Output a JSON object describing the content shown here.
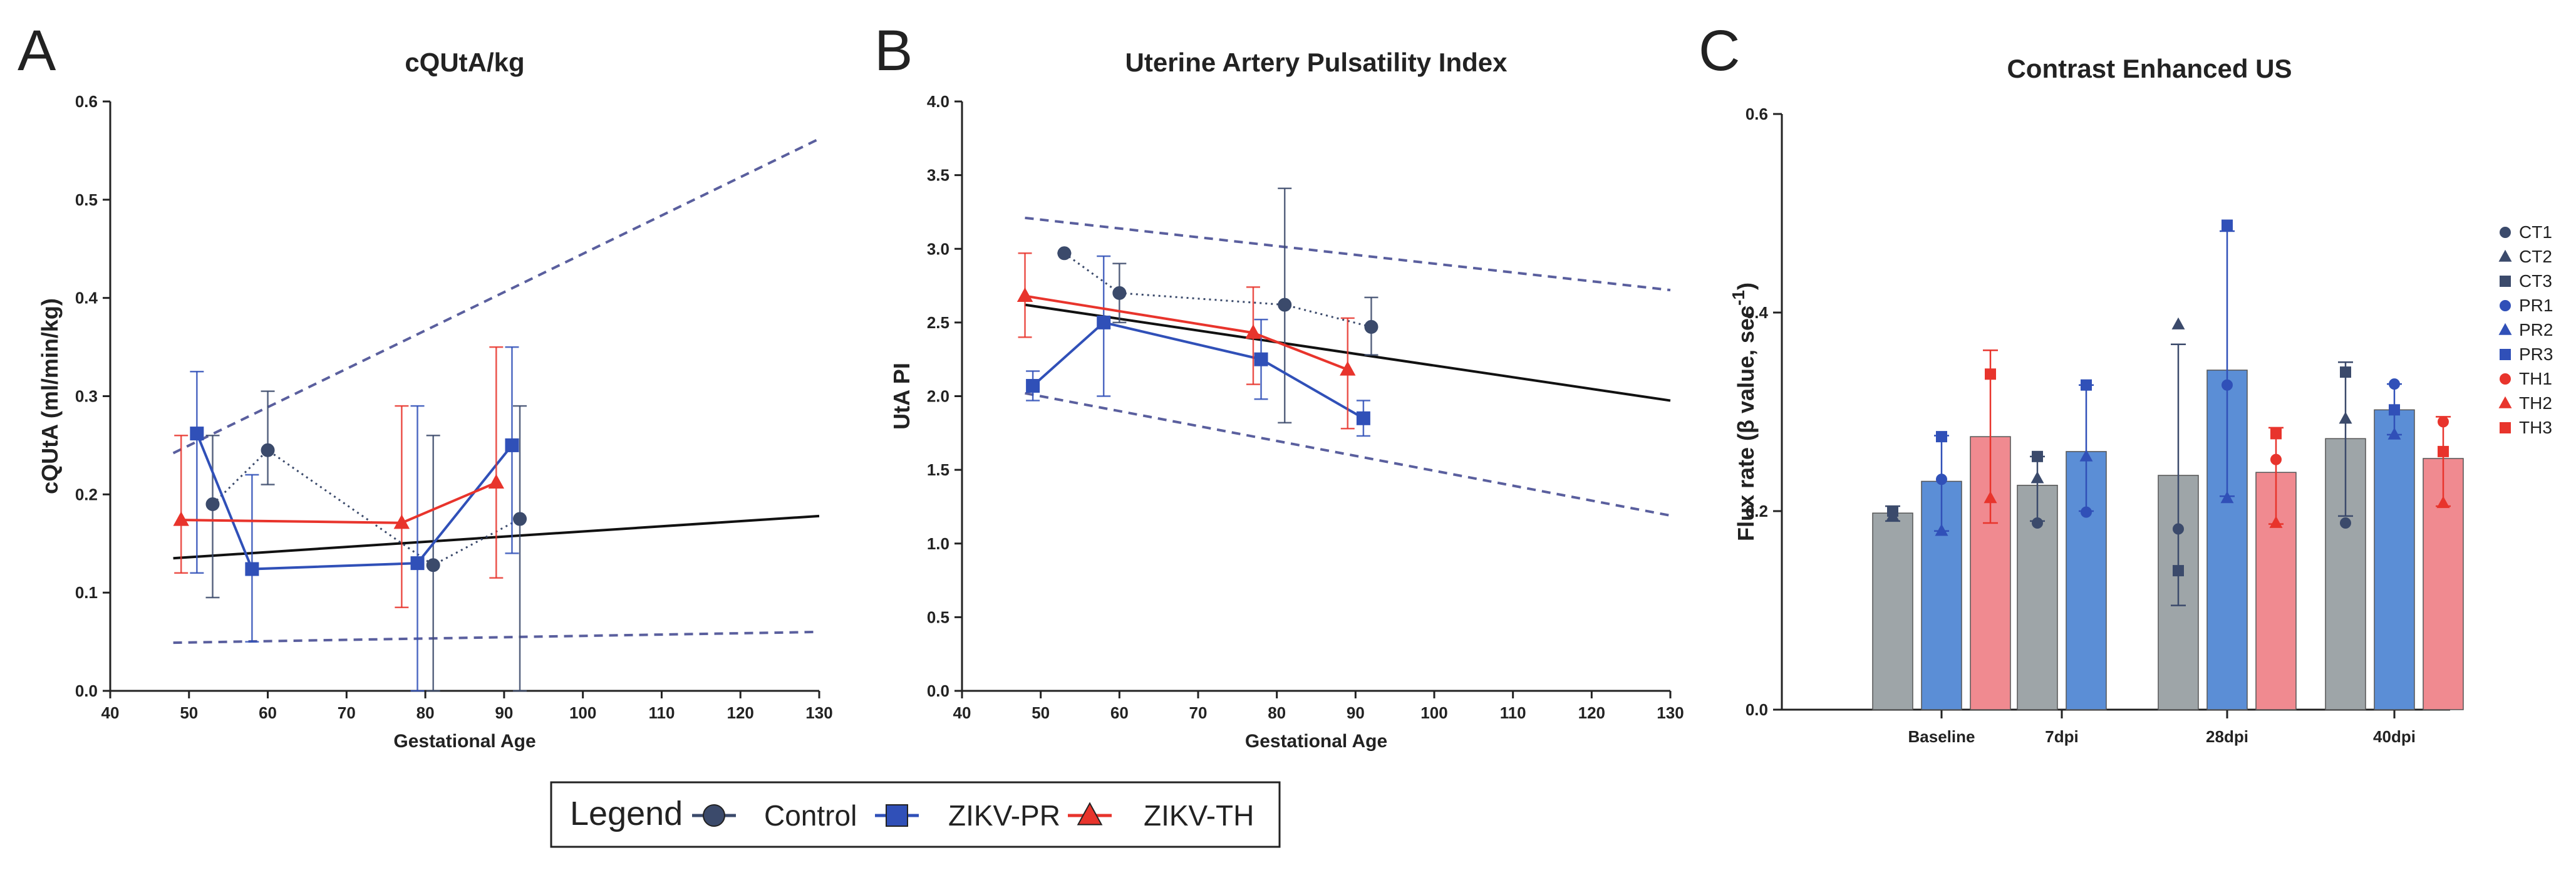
{
  "colors": {
    "control": "#3b4a6b",
    "zikv_pr": "#3050b8",
    "zikv_th": "#e8342c",
    "bar_ct": "#9ea5a8",
    "bar_pr": "#5b8ed6",
    "bar_th": "#f08a90",
    "dashed": "#5a5f9e",
    "fit": "#111111"
  },
  "panels": {
    "A": "A",
    "B": "B",
    "C": "C"
  },
  "legend": {
    "title": "Legend",
    "items": [
      "Control",
      "ZIKV-PR",
      "ZIKV-TH"
    ]
  },
  "chart_data": [
    {
      "id": "A",
      "type": "line",
      "title": "cQUtA/kg",
      "xlabel": "Gestational Age",
      "ylabel": "cQUtA  (ml/min/kg)",
      "xlim": [
        40,
        130
      ],
      "ylim": [
        0,
        0.6
      ],
      "xticks": [
        "40",
        "50",
        "60",
        "70",
        "80",
        "90",
        "100",
        "110",
        "120",
        "130"
      ],
      "yticks": [
        "0.0",
        "0.1",
        "0.2",
        "0.3",
        "0.4",
        "0.5",
        "0.6"
      ],
      "series": [
        {
          "name": "Control",
          "marker": "circle",
          "dotted": true,
          "x": [
            53,
            60,
            81,
            92
          ],
          "y": [
            0.19,
            0.245,
            0.128,
            0.175
          ],
          "err": [
            [
              0.095,
              0.26
            ],
            [
              0.21,
              0.305
            ],
            [
              0.0,
              0.26
            ],
            [
              0.0,
              0.29
            ]
          ]
        },
        {
          "name": "ZIKV-PR",
          "marker": "square",
          "dotted": false,
          "x": [
            51,
            58,
            79,
            91
          ],
          "y": [
            0.262,
            0.124,
            0.13,
            0.25
          ],
          "err": [
            [
              0.12,
              0.325
            ],
            [
              0.05,
              0.22
            ],
            [
              0.0,
              0.29
            ],
            [
              0.14,
              0.35
            ]
          ]
        },
        {
          "name": "ZIKV-TH",
          "marker": "triangle",
          "dotted": false,
          "x": [
            49,
            77,
            89
          ],
          "y": [
            0.174,
            0.171,
            0.212
          ],
          "err": [
            [
              0.12,
              0.26
            ],
            [
              0.085,
              0.29
            ],
            [
              0.115,
              0.35
            ]
          ]
        }
      ],
      "fit": {
        "x": [
          48,
          130
        ],
        "y": [
          0.135,
          0.178
        ]
      },
      "bounds": [
        {
          "x": [
            48,
            130
          ],
          "y": [
            0.242,
            0.562
          ]
        },
        {
          "x": [
            48,
            130
          ],
          "y": [
            0.049,
            0.06
          ]
        }
      ]
    },
    {
      "id": "B",
      "type": "line",
      "title": "Uterine Artery Pulsatility Index",
      "xlabel": "Gestational Age",
      "ylabel": "UtA PI",
      "xlim": [
        40,
        130
      ],
      "ylim": [
        0,
        4.0
      ],
      "xticks": [
        "40",
        "50",
        "60",
        "70",
        "80",
        "90",
        "100",
        "110",
        "120",
        "130"
      ],
      "yticks": [
        "0.0",
        "0.5",
        "1.0",
        "1.5",
        "2.0",
        "2.5",
        "3.0",
        "3.5",
        "4.0"
      ],
      "series": [
        {
          "name": "Control",
          "marker": "circle",
          "dotted": true,
          "x": [
            53,
            60,
            81,
            92
          ],
          "y": [
            2.97,
            2.7,
            2.62,
            2.47
          ],
          "err": [
            [
              2.97,
              2.97
            ],
            [
              2.5,
              2.9
            ],
            [
              1.82,
              3.41
            ],
            [
              2.28,
              2.67
            ]
          ]
        },
        {
          "name": "ZIKV-PR",
          "marker": "square",
          "dotted": false,
          "x": [
            49,
            58,
            78,
            91
          ],
          "y": [
            2.07,
            2.5,
            2.25,
            1.85
          ],
          "err": [
            [
              1.97,
              2.17
            ],
            [
              2.0,
              2.95
            ],
            [
              1.98,
              2.52
            ],
            [
              1.73,
              1.97
            ]
          ]
        },
        {
          "name": "ZIKV-TH",
          "marker": "triangle",
          "dotted": false,
          "x": [
            48,
            77,
            89
          ],
          "y": [
            2.68,
            2.43,
            2.18
          ],
          "err": [
            [
              2.4,
              2.97
            ],
            [
              2.08,
              2.74
            ],
            [
              1.78,
              2.53
            ]
          ]
        }
      ],
      "fit": {
        "x": [
          48,
          130
        ],
        "y": [
          2.62,
          1.97
        ]
      },
      "bounds": [
        {
          "x": [
            48,
            130
          ],
          "y": [
            3.21,
            2.72
          ]
        },
        {
          "x": [
            48,
            130
          ],
          "y": [
            2.02,
            1.19
          ]
        }
      ]
    },
    {
      "id": "C",
      "type": "bar",
      "title": "Contrast Enhanced US",
      "ylabel": "Flux rate (β value, sec",
      "ylabel_sup": "-1",
      "ylabel_close": ")",
      "ylim": [
        0,
        0.6
      ],
      "yticks": [
        "0.0",
        "0.2",
        "0.4",
        "0.6"
      ],
      "categories": [
        "Baseline",
        "7dpi",
        "28dpi",
        "40dpi"
      ],
      "series": [
        {
          "name": "CT",
          "values": [
            0.198,
            0.226,
            0.236,
            0.273
          ],
          "err": [
            [
              0.19,
              0.205
            ],
            [
              0.19,
              0.255
            ],
            [
              0.105,
              0.368
            ],
            [
              0.195,
              0.35
            ]
          ]
        },
        {
          "name": "PR",
          "values": [
            0.23,
            0.26,
            0.342,
            0.302
          ],
          "err": [
            [
              0.18,
              0.276
            ],
            [
              0.2,
              0.327
            ],
            [
              0.215,
              0.482
            ],
            [
              0.277,
              0.328
            ]
          ]
        },
        {
          "name": "TH",
          "values": [
            0.275,
            null,
            0.239,
            0.253
          ],
          "err": [
            [
              0.188,
              0.362
            ],
            null,
            [
              0.187,
              0.284
            ],
            [
              0.205,
              0.295
            ]
          ]
        }
      ],
      "points": [
        {
          "cat": 0,
          "group": 0,
          "values": [
            0.2,
            0.195,
            0.2
          ],
          "shapes": [
            "circle",
            "triangle",
            "square"
          ]
        },
        {
          "cat": 0,
          "group": 1,
          "values": [
            0.232,
            0.18,
            0.275
          ],
          "shapes": [
            "circle",
            "triangle",
            "square"
          ]
        },
        {
          "cat": 0,
          "group": 2,
          "values": [
            0.213,
            0.338
          ],
          "shapes": [
            "triangle",
            "square"
          ]
        },
        {
          "cat": 1,
          "group": 0,
          "values": [
            0.188,
            0.233,
            0.255
          ],
          "shapes": [
            "circle",
            "triangle",
            "square"
          ]
        },
        {
          "cat": 1,
          "group": 1,
          "values": [
            0.199,
            0.255,
            0.327
          ],
          "shapes": [
            "circle",
            "triangle",
            "square"
          ]
        },
        {
          "cat": 2,
          "group": 0,
          "values": [
            0.182,
            0.388,
            0.14
          ],
          "shapes": [
            "circle",
            "triangle",
            "square"
          ]
        },
        {
          "cat": 2,
          "group": 1,
          "values": [
            0.327,
            0.213,
            0.488
          ],
          "shapes": [
            "circle",
            "triangle",
            "square"
          ]
        },
        {
          "cat": 2,
          "group": 2,
          "values": [
            0.252,
            0.188,
            0.278
          ],
          "shapes": [
            "circle",
            "triangle",
            "square"
          ]
        },
        {
          "cat": 3,
          "group": 0,
          "values": [
            0.188,
            0.293,
            0.34
          ],
          "shapes": [
            "circle",
            "triangle",
            "square"
          ]
        },
        {
          "cat": 3,
          "group": 1,
          "values": [
            0.328,
            0.277,
            0.302
          ],
          "shapes": [
            "circle",
            "triangle",
            "square"
          ]
        },
        {
          "cat": 3,
          "group": 2,
          "values": [
            0.29,
            0.208,
            0.26
          ],
          "shapes": [
            "circle",
            "triangle",
            "square"
          ]
        }
      ],
      "legend": [
        {
          "label": "CT1",
          "shape": "circle",
          "group": 0
        },
        {
          "label": "CT2",
          "shape": "triangle",
          "group": 0
        },
        {
          "label": "CT3",
          "shape": "square",
          "group": 0
        },
        {
          "label": "PR1",
          "shape": "circle",
          "group": 1
        },
        {
          "label": "PR2",
          "shape": "triangle",
          "group": 1
        },
        {
          "label": "PR3",
          "shape": "square",
          "group": 1
        },
        {
          "label": "TH1",
          "shape": "circle",
          "group": 2
        },
        {
          "label": "TH2",
          "shape": "triangle",
          "group": 2
        },
        {
          "label": "TH3",
          "shape": "square",
          "group": 2
        }
      ]
    }
  ]
}
